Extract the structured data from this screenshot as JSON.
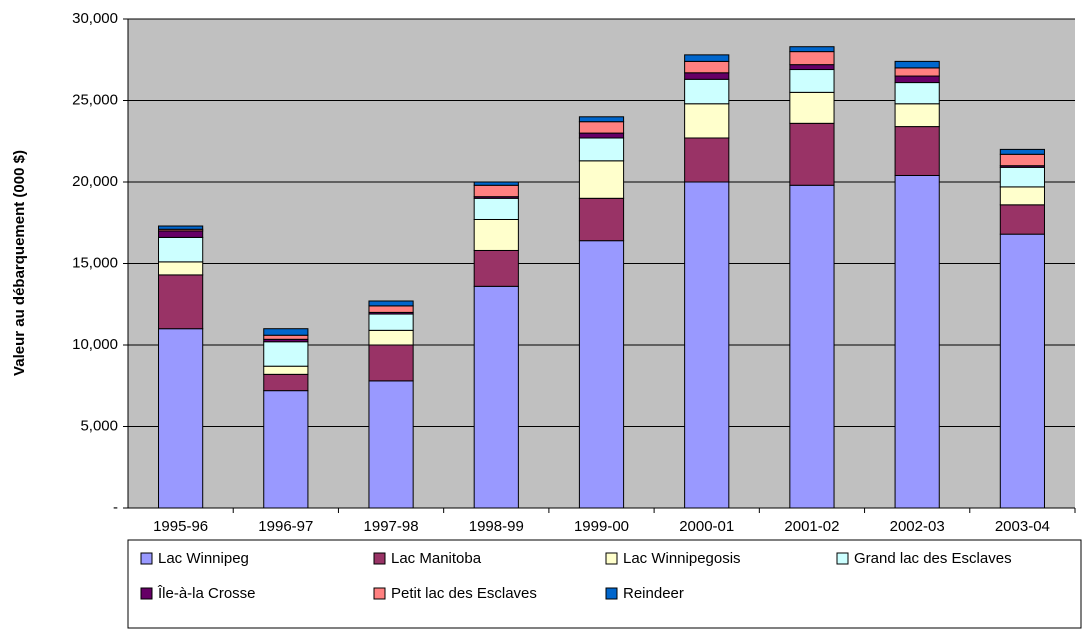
{
  "chart_data": {
    "type": "stacked_bar",
    "y_label": "Valeur au débarquement (000 $)",
    "categories": [
      "1995-96",
      "1996-97",
      "1997-98",
      "1998-99",
      "1999-00",
      "2000-01",
      "2001-02",
      "2002-03",
      "2003-04"
    ],
    "series": [
      {
        "name": "Lac Winnipeg",
        "color": "#9999ff",
        "values": [
          11000,
          7200,
          7800,
          13600,
          16400,
          20000,
          19800,
          20400,
          16800
        ]
      },
      {
        "name": "Lac Manitoba",
        "color": "#993366",
        "values": [
          3300,
          1000,
          2200,
          2200,
          2600,
          2700,
          3800,
          3000,
          1800
        ]
      },
      {
        "name": "Lac Winnipegosis",
        "color": "#ffffcc",
        "values": [
          800,
          500,
          900,
          1900,
          2300,
          2100,
          1900,
          1400,
          1100
        ]
      },
      {
        "name": "Grand lac des Esclaves",
        "color": "#ccffff",
        "values": [
          1500,
          1500,
          1000,
          1300,
          1400,
          1500,
          1400,
          1300,
          1200
        ]
      },
      {
        "name": "Île-à-la Crosse",
        "color": "#660066",
        "values": [
          400,
          150,
          100,
          100,
          300,
          400,
          300,
          400,
          100
        ]
      },
      {
        "name": "Petit lac des Esclaves",
        "color": "#ff8080",
        "values": [
          100,
          250,
          400,
          700,
          700,
          700,
          800,
          500,
          700
        ]
      },
      {
        "name": "Reindeer",
        "color": "#0066cc",
        "values": [
          200,
          400,
          300,
          200,
          300,
          400,
          300,
          400,
          300
        ]
      }
    ],
    "ylim": [
      0,
      30000
    ],
    "yticks": [
      {
        "value": 0,
        "label": "-"
      },
      {
        "value": 5000,
        "label": "5,000"
      },
      {
        "value": 10000,
        "label": "10,000"
      },
      {
        "value": 15000,
        "label": "15,000"
      },
      {
        "value": 20000,
        "label": "20,000"
      },
      {
        "value": 25000,
        "label": "25,000"
      },
      {
        "value": 30000,
        "label": "30,000"
      }
    ],
    "grid": true,
    "legend": "bottom"
  }
}
